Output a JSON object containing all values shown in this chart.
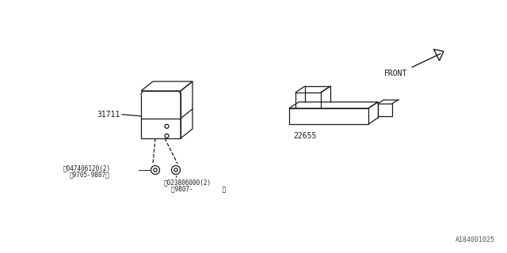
{
  "bg_color": "#ffffff",
  "line_color": "#1a1a1a",
  "fig_width": 6.4,
  "fig_height": 3.2,
  "diagram_id": "A184001025",
  "part_31711_label": "31711",
  "part_22655_label": "22655",
  "screw_s_label": "Ⓞ047406120(2)",
  "screw_s_date": "（9705-9807）",
  "screw_n_label": "Ⓝ023806000(2)",
  "screw_n_date": "（9807-        ）",
  "front_label": "FRONT"
}
